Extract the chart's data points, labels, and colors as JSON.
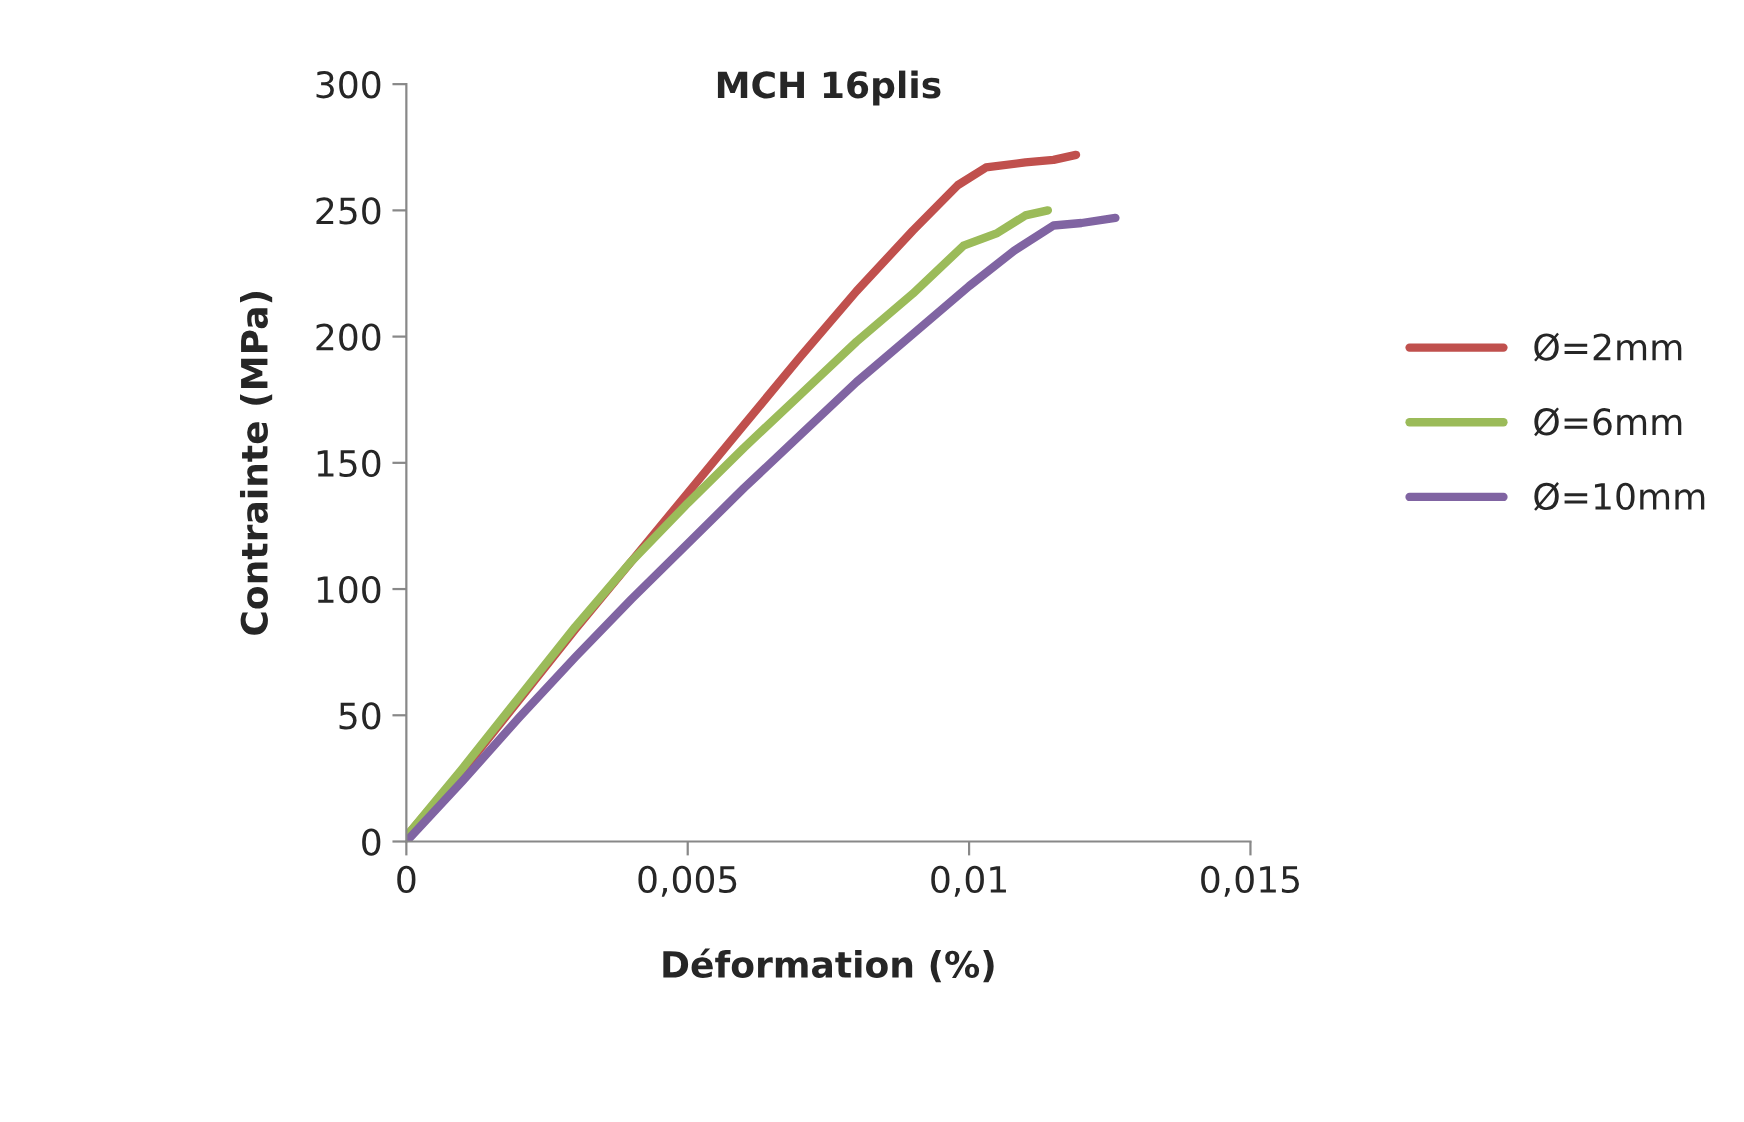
{
  "chart_data": {
    "type": "line",
    "title": "MCH 16plis",
    "xlabel": "Déformation (%)",
    "ylabel": "Contrainte (MPa)",
    "xlim": [
      0,
      0.015
    ],
    "xticks": [
      {
        "value": 0,
        "label": "0"
      },
      {
        "value": 0.005,
        "label": "0,005"
      },
      {
        "value": 0.01,
        "label": "0,01"
      },
      {
        "value": 0.015,
        "label": "0,015"
      }
    ],
    "ylim": [
      0,
      300
    ],
    "yticks": [
      0,
      50,
      100,
      150,
      200,
      250,
      300
    ],
    "grid": false,
    "legend": "right",
    "marker": "none",
    "line_style": "solid",
    "series": [
      {
        "name": "Ø=2mm",
        "color": "#c0504d",
        "x": [
          0,
          0.001,
          0.002,
          0.003,
          0.004,
          0.005,
          0.006,
          0.007,
          0.008,
          0.009,
          0.0098,
          0.0103,
          0.011,
          0.0115,
          0.0119
        ],
        "values": [
          2,
          28,
          56,
          84,
          111,
          138,
          165,
          192,
          218,
          242,
          260,
          267,
          269,
          270,
          272
        ]
      },
      {
        "name": "Ø=6mm",
        "color": "#9bbb59",
        "x": [
          0,
          0.001,
          0.002,
          0.003,
          0.004,
          0.005,
          0.006,
          0.007,
          0.008,
          0.009,
          0.0099,
          0.0105,
          0.011,
          0.0114
        ],
        "values": [
          2,
          29,
          57,
          85,
          111,
          134,
          156,
          177,
          198,
          217,
          236,
          241,
          248,
          250
        ]
      },
      {
        "name": "Ø=10mm",
        "color": "#8064a2",
        "x": [
          0,
          0.001,
          0.002,
          0.003,
          0.004,
          0.005,
          0.006,
          0.007,
          0.008,
          0.009,
          0.01,
          0.0108,
          0.0115,
          0.012,
          0.0126
        ],
        "values": [
          0,
          24,
          49,
          73,
          96,
          118,
          140,
          161,
          182,
          201,
          220,
          234,
          244,
          245,
          247
        ]
      }
    ]
  }
}
